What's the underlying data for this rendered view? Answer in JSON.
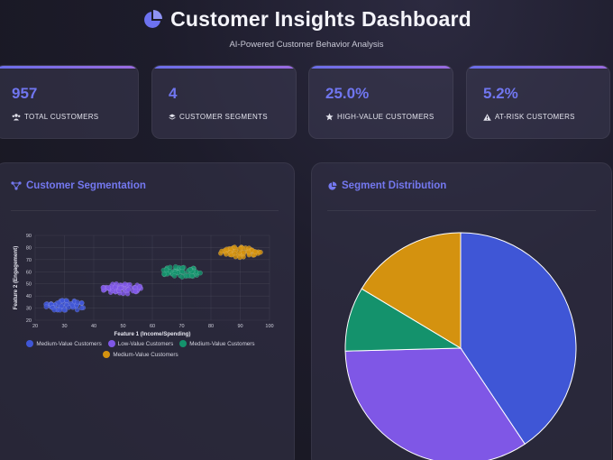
{
  "header": {
    "title": "Customer Insights Dashboard",
    "subtitle": "AI-Powered Customer Behavior Analysis",
    "icon": "pie-chart-icon"
  },
  "stats": [
    {
      "value": "957",
      "label": "TOTAL CUSTOMERS",
      "icon": "users-icon"
    },
    {
      "value": "4",
      "label": "CUSTOMER SEGMENTS",
      "icon": "layers-icon"
    },
    {
      "value": "25.0%",
      "label": "HIGH-VALUE CUSTOMERS",
      "icon": "star-icon"
    },
    {
      "value": "5.2%",
      "label": "AT-RISK CUSTOMERS",
      "icon": "warning-icon"
    }
  ],
  "panels": {
    "segmentation": {
      "title": "Customer Segmentation",
      "icon": "network-icon"
    },
    "distribution": {
      "title": "Segment Distribution",
      "icon": "pie-chart-icon"
    }
  },
  "colors": {
    "blue": "#3f56d6",
    "purple": "#7f57e6",
    "green": "#14926c",
    "orange": "#d4920f",
    "accent": "#7076f0"
  },
  "chart_data": [
    {
      "type": "scatter",
      "xlabel": "Feature 1 (Income/Spending)",
      "ylabel": "Feature 2 (Engagement)",
      "xlim": [
        20,
        100
      ],
      "ylim": [
        20,
        90
      ],
      "xticks": [
        20,
        30,
        40,
        50,
        60,
        70,
        80,
        90,
        100
      ],
      "yticks": [
        20,
        30,
        40,
        50,
        60,
        70,
        80,
        90
      ],
      "grid": true,
      "legend": "bottom",
      "series": [
        {
          "name": "Medium-Value Customers",
          "color": "#3f56d6",
          "cx": 30,
          "cy": 32,
          "rx": 7,
          "ry": 4.5
        },
        {
          "name": "Low-Value Customers",
          "color": "#7f57e6",
          "cx": 50,
          "cy": 46,
          "rx": 7,
          "ry": 4.5
        },
        {
          "name": "Medium-Value Customers",
          "color": "#14926c",
          "cx": 70,
          "cy": 60,
          "rx": 7,
          "ry": 4.5
        },
        {
          "name": "Medium-Value Customers",
          "color": "#d4920f",
          "cx": 90,
          "cy": 76,
          "rx": 7,
          "ry": 4.5
        }
      ]
    },
    {
      "type": "pie",
      "slices": [
        {
          "value": 40.6,
          "color": "#3f56d6"
        },
        {
          "value": 34.0,
          "color": "#7f57e6"
        },
        {
          "value": 9.0,
          "color": "#14926c"
        },
        {
          "value": 16.4,
          "color": "#d4920f"
        }
      ]
    }
  ]
}
